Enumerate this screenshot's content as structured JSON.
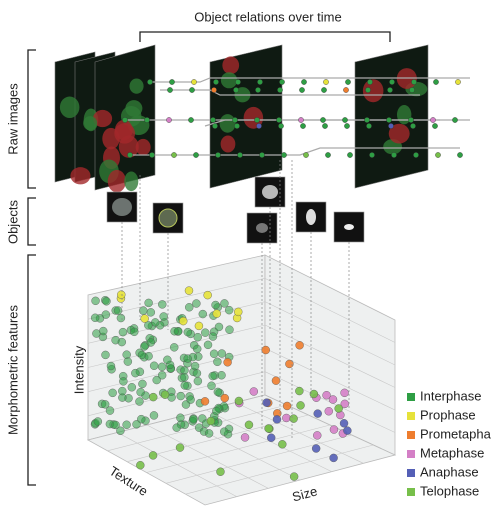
{
  "title": "Object relations over time",
  "sections": [
    {
      "label": "Raw images"
    },
    {
      "label": "Objects"
    },
    {
      "label": "Morphometric features"
    }
  ],
  "axes": {
    "z": "Intensity",
    "x": "Texture",
    "y": "Size"
  },
  "legend": [
    {
      "label": "Interphase",
      "color": "#2e9e44"
    },
    {
      "label": "Prophase",
      "color": "#e6e23a"
    },
    {
      "label": "Prometapha",
      "color": "#ee7d2e"
    },
    {
      "label": "Metaphase",
      "color": "#d47fc6"
    },
    {
      "label": "Anaphase",
      "color": "#545fb6"
    },
    {
      "label": "Telophase",
      "color": "#77bf4a"
    }
  ]
}
